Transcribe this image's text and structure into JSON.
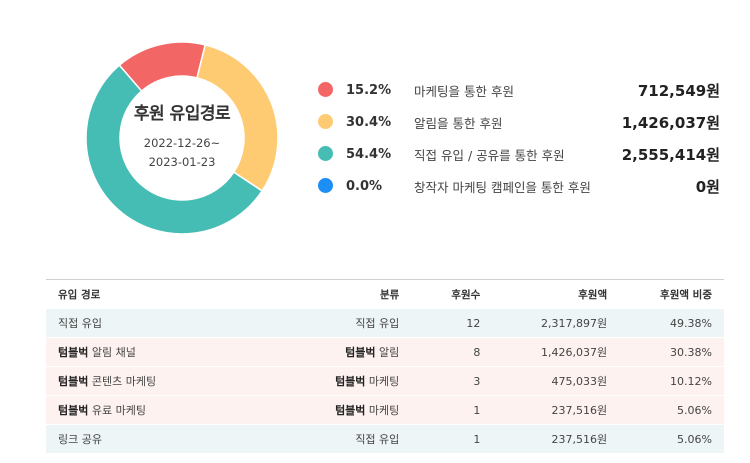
{
  "donut": {
    "title": "후원 유입경로",
    "date_start": "2022-12-26~",
    "date_end": "2023-01-23",
    "segments": [
      {
        "color": "#f36666",
        "share": 15.2
      },
      {
        "color": "#fecb72",
        "share": 30.4
      },
      {
        "color": "#45bdb5",
        "share": 54.4
      },
      {
        "color": "#1d8ef5",
        "share": 0.0
      }
    ]
  },
  "legend": [
    {
      "color": "#f36666",
      "pct": "15.2%",
      "label": "마케팅을 통한 후원",
      "amount": "712,549원"
    },
    {
      "color": "#fecb72",
      "pct": "30.4%",
      "label": "알림을 통한 후원",
      "amount": "1,426,037원"
    },
    {
      "color": "#45bdb5",
      "pct": "54.4%",
      "label": "직접 유입 / 공유를 통한 후원",
      "amount": "2,555,414원"
    },
    {
      "color": "#1d8ef5",
      "pct": "0.0%",
      "label": "창작자 마케팅 캠페인을 통한 후원",
      "amount": "0원"
    }
  ],
  "table": {
    "headers": {
      "path": "유입 경로",
      "category": "분류",
      "count": "후원수",
      "amount": "후원액",
      "ratio": "후원액 비중"
    },
    "rows": [
      {
        "path_brand": "",
        "path": "직접 유입",
        "cat_brand": "",
        "category": "직접 유입",
        "count": "12",
        "amount": "2,317,897원",
        "ratio": "49.38%"
      },
      {
        "path_brand": "텀블벅",
        "path": " 알림 채널",
        "cat_brand": "텀블벅",
        "category": " 알림",
        "count": "8",
        "amount": "1,426,037원",
        "ratio": "30.38%"
      },
      {
        "path_brand": "텀블벅",
        "path": " 콘텐츠 마케팅",
        "cat_brand": "텀블벅",
        "category": " 마케팅",
        "count": "3",
        "amount": "475,033원",
        "ratio": "10.12%"
      },
      {
        "path_brand": "텀블벅",
        "path": " 유료 마케팅",
        "cat_brand": "텀블벅",
        "category": " 마케팅",
        "count": "1",
        "amount": "237,516원",
        "ratio": "5.06%"
      },
      {
        "path_brand": "",
        "path": "링크 공유",
        "cat_brand": "",
        "category": "직접 유입",
        "count": "1",
        "amount": "237,516원",
        "ratio": "5.06%"
      }
    ]
  }
}
